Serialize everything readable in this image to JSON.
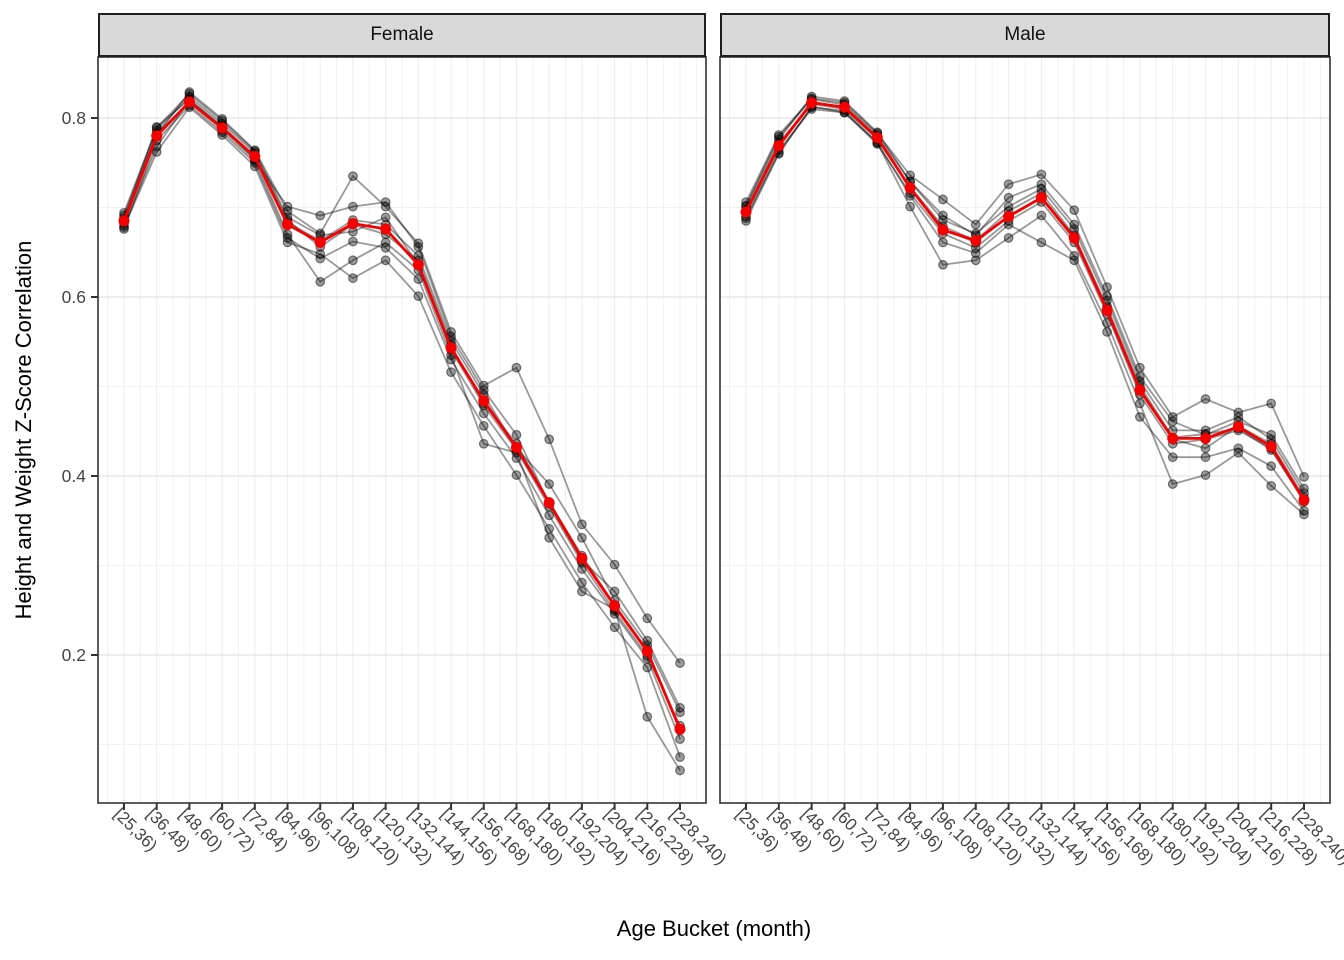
{
  "axes": {
    "x_title": "Age Bucket (month)",
    "y_title": "Height and Weight Z-Score Correlation"
  },
  "chart_data": {
    "type": "line",
    "title": "",
    "xlabel": "Age Bucket (month)",
    "ylabel": "Height and Weight Z-Score Correlation",
    "legend_position": "none",
    "grid": true,
    "ylim": [
      0.04,
      0.868
    ],
    "y_ticks": [
      0.2,
      0.4,
      0.6,
      0.8
    ],
    "y_tick_labels": [
      "0.2",
      "0.4",
      "0.6",
      "0.8"
    ],
    "y_minor_ticks": [
      0.1,
      0.3,
      0.5,
      0.7
    ],
    "categories": [
      "[25,36)",
      "[36,48)",
      "[48,60)",
      "[60,72)",
      "[72,84)",
      "[84,96)",
      "[96,108)",
      "[108,120)",
      "[120,132)",
      "[132,144)",
      "[144,156)",
      "[156,168)",
      "[168,180)",
      "[180,192)",
      "[192,204)",
      "[204,216)",
      "[216,228)",
      "[228,240)"
    ],
    "colors": {
      "mean_line": "#f40000",
      "individual_line": "rgba(0,0,0,0.40)",
      "individual_point_fill": "rgba(0,0,0,0.38)",
      "individual_point_stroke": "rgba(0,0,0,0.48)",
      "strip_bg": "#d9d9d9",
      "panel_border": "#333333",
      "grid_major": "#e4e4e4",
      "grid_minor": "#f1f1f1",
      "grid_vertical": "#ededed",
      "tick_label": "#444444",
      "axis_title": "#000000"
    },
    "panels": [
      {
        "label": "Female",
        "mean_series": {
          "name": "mean",
          "values": [
            0.685,
            0.78,
            0.818,
            0.789,
            0.757,
            0.681,
            0.661,
            0.682,
            0.676,
            0.636,
            0.543,
            0.484,
            0.432,
            0.37,
            0.308,
            0.255,
            0.204,
            0.117
          ]
        },
        "individual_series": [
          [
            0.676,
            0.775,
            0.814,
            0.784,
            0.75,
            0.666,
            0.643,
            0.662,
            0.655,
            0.62,
            0.53,
            0.47,
            0.42,
            0.356,
            0.296,
            0.246,
            0.196,
            0.106
          ],
          [
            0.691,
            0.786,
            0.824,
            0.794,
            0.761,
            0.686,
            0.656,
            0.681,
            0.67,
            0.641,
            0.546,
            0.481,
            0.436,
            0.371,
            0.311,
            0.256,
            0.206,
            0.116
          ],
          [
            0.68,
            0.768,
            0.82,
            0.79,
            0.754,
            0.67,
            0.617,
            0.641,
            0.661,
            0.63,
            0.535,
            0.436,
            0.426,
            0.331,
            0.271,
            0.251,
            0.131,
            0.071
          ],
          [
            0.686,
            0.781,
            0.829,
            0.799,
            0.764,
            0.696,
            0.671,
            0.735,
            0.701,
            0.66,
            0.561,
            0.501,
            0.521,
            0.441,
            0.346,
            0.301,
            0.241,
            0.191
          ],
          [
            0.688,
            0.79,
            0.821,
            0.791,
            0.757,
            0.683,
            0.663,
            0.686,
            0.681,
            0.646,
            0.551,
            0.491,
            0.431,
            0.391,
            0.331,
            0.261,
            0.211,
            0.136
          ],
          [
            0.678,
            0.762,
            0.812,
            0.781,
            0.746,
            0.661,
            0.648,
            0.621,
            0.641,
            0.601,
            0.516,
            0.456,
            0.401,
            0.341,
            0.281,
            0.231,
            0.186,
            0.086
          ],
          [
            0.683,
            0.783,
            0.817,
            0.787,
            0.753,
            0.701,
            0.691,
            0.701,
            0.706,
            0.656,
            0.556,
            0.496,
            0.446,
            0.369,
            0.306,
            0.271,
            0.216,
            0.141
          ],
          [
            0.694,
            0.789,
            0.827,
            0.797,
            0.763,
            0.689,
            0.669,
            0.673,
            0.689,
            0.636,
            0.541,
            0.479,
            0.429,
            0.366,
            0.303,
            0.249,
            0.199,
            0.121
          ]
        ]
      },
      {
        "label": "Male",
        "mean_series": {
          "name": "mean",
          "values": [
            0.695,
            0.769,
            0.817,
            0.812,
            0.778,
            0.722,
            0.675,
            0.663,
            0.69,
            0.711,
            0.666,
            0.585,
            0.496,
            0.442,
            0.442,
            0.455,
            0.433,
            0.373
          ]
        },
        "individual_series": [
          [
            0.69,
            0.764,
            0.81,
            0.806,
            0.771,
            0.716,
            0.671,
            0.655,
            0.685,
            0.706,
            0.661,
            0.581,
            0.491,
            0.436,
            0.441,
            0.451,
            0.431,
            0.371
          ],
          [
            0.701,
            0.776,
            0.824,
            0.819,
            0.784,
            0.729,
            0.686,
            0.671,
            0.701,
            0.721,
            0.676,
            0.596,
            0.506,
            0.451,
            0.451,
            0.466,
            0.441,
            0.381
          ],
          [
            0.685,
            0.76,
            0.812,
            0.808,
            0.772,
            0.701,
            0.636,
            0.641,
            0.666,
            0.691,
            0.646,
            0.571,
            0.481,
            0.391,
            0.401,
            0.426,
            0.389,
            0.357
          ],
          [
            0.706,
            0.781,
            0.822,
            0.817,
            0.783,
            0.736,
            0.709,
            0.681,
            0.726,
            0.737,
            0.697,
            0.611,
            0.521,
            0.466,
            0.486,
            0.471,
            0.481,
            0.399
          ],
          [
            0.695,
            0.77,
            0.818,
            0.812,
            0.778,
            0.721,
            0.676,
            0.661,
            0.691,
            0.711,
            0.666,
            0.586,
            0.496,
            0.441,
            0.431,
            0.456,
            0.436,
            0.376
          ],
          [
            0.688,
            0.761,
            0.813,
            0.806,
            0.773,
            0.713,
            0.661,
            0.649,
            0.681,
            0.661,
            0.641,
            0.561,
            0.466,
            0.421,
            0.421,
            0.431,
            0.411,
            0.361
          ],
          [
            0.702,
            0.779,
            0.821,
            0.815,
            0.781,
            0.729,
            0.691,
            0.669,
            0.711,
            0.726,
            0.681,
            0.601,
            0.511,
            0.461,
            0.446,
            0.461,
            0.446,
            0.386
          ],
          [
            0.697,
            0.772,
            0.816,
            0.81,
            0.776,
            0.723,
            0.679,
            0.663,
            0.696,
            0.716,
            0.669,
            0.589,
            0.501,
            0.443,
            0.447,
            0.453,
            0.429,
            0.373
          ]
        ]
      }
    ]
  }
}
